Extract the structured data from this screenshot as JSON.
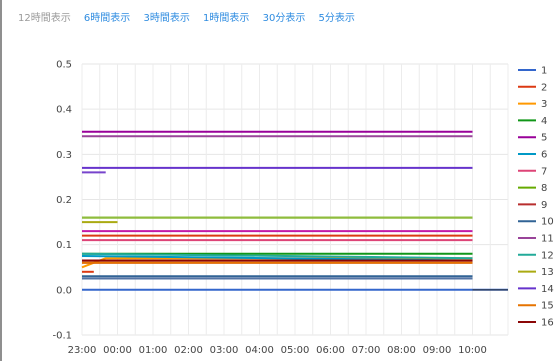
{
  "range_selector": {
    "options": [
      "12時間表示",
      "6時間表示",
      "3時間表示",
      "1時間表示",
      "30分表示",
      "5分表示"
    ],
    "selected": "12時間表示"
  },
  "chart_data": {
    "type": "line",
    "x_start": "23:00",
    "x_tick_labels": [
      "23:00",
      "00:00",
      "01:00",
      "02:00",
      "03:00",
      "04:00",
      "05:00",
      "06:00",
      "07:00",
      "08:00",
      "09:00",
      "10:00"
    ],
    "x_end": "11:00",
    "y_ticks": [
      -0.1,
      0.0,
      0.1,
      0.2,
      0.3,
      0.4,
      0.5
    ],
    "ylim": [
      -0.1,
      0.5
    ],
    "grid": true,
    "legend_position": "right",
    "series": [
      {
        "name": "1",
        "color": "#3366cc",
        "points": [
          [
            "23:00",
            0.0
          ],
          [
            "10:00",
            0.0
          ],
          [
            "11:00",
            0.0
          ]
        ]
      },
      {
        "name": "2",
        "color": "#dc3912",
        "points": [
          [
            "23:00",
            0.04
          ],
          [
            "23:20",
            0.04
          ]
        ]
      },
      {
        "name": "3",
        "color": "#ff9900",
        "points": [
          [
            "23:00",
            0.05
          ],
          [
            "23:40",
            0.07
          ],
          [
            "10:00",
            0.07
          ]
        ]
      },
      {
        "name": "4",
        "color": "#109618",
        "points": [
          [
            "23:00",
            0.08
          ],
          [
            "10:00",
            0.08
          ]
        ]
      },
      {
        "name": "5",
        "color": "#990099",
        "points": [
          [
            "23:00",
            0.35
          ],
          [
            "10:00",
            0.35
          ]
        ]
      },
      {
        "name": "6",
        "color": "#0099c6",
        "points": [
          [
            "23:00",
            0.075
          ],
          [
            "10:00",
            0.065
          ]
        ]
      },
      {
        "name": "7",
        "color": "#dd4477",
        "points": [
          [
            "23:00",
            0.11
          ],
          [
            "10:00",
            0.11
          ]
        ]
      },
      {
        "name": "8",
        "color": "#66aa00",
        "points": [
          [
            "23:00",
            0.16
          ],
          [
            "10:00",
            0.16
          ]
        ]
      },
      {
        "name": "9",
        "color": "#b82e2e",
        "points": [
          [
            "23:00",
            0.06
          ],
          [
            "10:00",
            0.06
          ]
        ]
      },
      {
        "name": "10",
        "color": "#316395",
        "points": [
          [
            "23:00",
            0.03
          ],
          [
            "10:00",
            0.03
          ]
        ]
      },
      {
        "name": "11",
        "color": "#994499",
        "points": [
          [
            "23:00",
            0.34
          ],
          [
            "10:00",
            0.34
          ]
        ]
      },
      {
        "name": "12",
        "color": "#22aa99",
        "points": [
          [
            "23:00",
            0.08
          ],
          [
            "10:00",
            0.07
          ]
        ]
      },
      {
        "name": "13",
        "color": "#aaaa11",
        "points": [
          [
            "23:00",
            0.15
          ],
          [
            "00:00",
            0.15
          ]
        ]
      },
      {
        "name": "14",
        "color": "#6633cc",
        "points": [
          [
            "23:00",
            0.27
          ],
          [
            "10:00",
            0.27
          ]
        ]
      },
      {
        "name": "15",
        "color": "#e67300",
        "points": [
          [
            "23:00",
            0.06
          ],
          [
            "10:00",
            0.06
          ]
        ]
      },
      {
        "name": "16",
        "color": "#8b0707",
        "points": [
          [
            "23:00",
            0.065
          ],
          [
            "10:00",
            0.065
          ]
        ]
      },
      {
        "name": "",
        "color": "#c21aa8",
        "points": [
          [
            "23:00",
            0.13
          ],
          [
            "10:00",
            0.13
          ]
        ]
      },
      {
        "name": "",
        "color": "#7744cc",
        "points": [
          [
            "23:00",
            0.26
          ],
          [
            "23:40",
            0.26
          ]
        ]
      },
      {
        "name": "",
        "color": "#dc3912",
        "points": [
          [
            "23:00",
            0.12
          ],
          [
            "10:00",
            0.12
          ]
        ]
      },
      {
        "name": "",
        "color": "#5574a6",
        "points": [
          [
            "23:00",
            0.025
          ],
          [
            "10:00",
            0.025
          ]
        ]
      },
      {
        "name": "",
        "color": "#8fbc3c",
        "points": [
          [
            "23:00",
            0.16
          ],
          [
            "10:00",
            0.16
          ]
        ]
      }
    ]
  }
}
